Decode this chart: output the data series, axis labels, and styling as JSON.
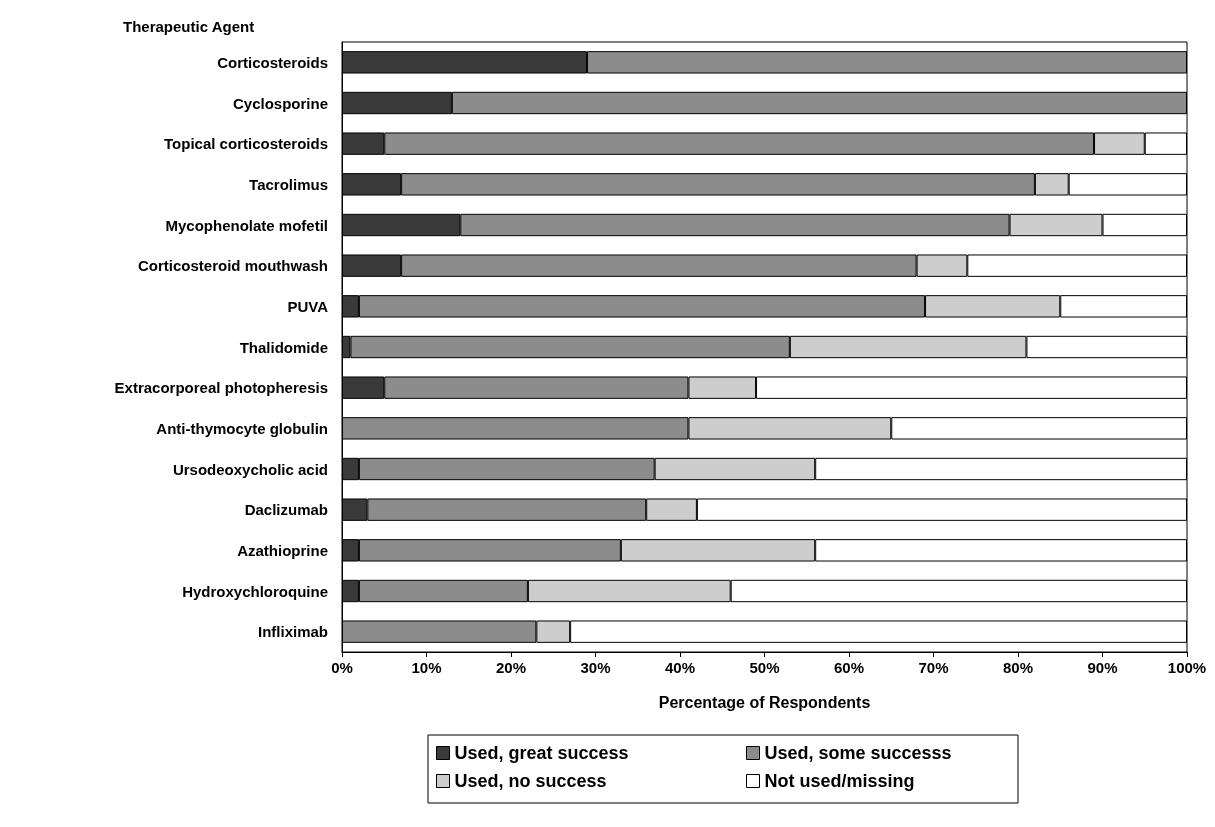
{
  "chart_data": {
    "type": "bar",
    "orientation": "horizontal",
    "stacked": true,
    "ylabel": "Therapeutic Agent",
    "xlabel": "Percentage of Respondents",
    "categories": [
      "Corticosteroids",
      "Cyclosporine",
      "Topical corticosteroids",
      "Tacrolimus",
      "Mycophenolate mofetil",
      "Corticosteroid mouthwash",
      "PUVA",
      "Thalidomide",
      "Extracorporeal photopheresis",
      "Anti-thymocyte globulin",
      "Ursodeoxycholic acid",
      "Daclizumab",
      "Azathioprine",
      "Hydroxychloroquine",
      "Infliximab"
    ],
    "series": [
      {
        "name": "Used, great success",
        "color": "#3a3a3a",
        "values": [
          29,
          13,
          5,
          7,
          14,
          7,
          2,
          1,
          5,
          0,
          2,
          3,
          2,
          2,
          0
        ]
      },
      {
        "name": "Used, some successs",
        "color": "#8c8c8c",
        "values": [
          71,
          87,
          84,
          75,
          65,
          61,
          67,
          52,
          36,
          41,
          35,
          33,
          31,
          20,
          23
        ]
      },
      {
        "name": "Used, no success",
        "color": "#cdcdcd",
        "values": [
          0,
          0,
          6,
          4,
          11,
          6,
          16,
          28,
          8,
          24,
          19,
          6,
          23,
          24,
          4
        ]
      },
      {
        "name": "Not used/missing",
        "color": "#ffffff",
        "values": [
          0,
          0,
          5,
          14,
          10,
          26,
          15,
          19,
          51,
          35,
          44,
          58,
          44,
          54,
          73
        ]
      }
    ],
    "xlim": [
      0,
      100
    ],
    "xticks": [
      {
        "value": 0,
        "label": "0%"
      },
      {
        "value": 10,
        "label": "10%"
      },
      {
        "value": 20,
        "label": "20%"
      },
      {
        "value": 30,
        "label": "30%"
      },
      {
        "value": 40,
        "label": "40%"
      },
      {
        "value": 50,
        "label": "50%"
      },
      {
        "value": 60,
        "label": "60%"
      },
      {
        "value": 70,
        "label": "70%"
      },
      {
        "value": 80,
        "label": "80%"
      },
      {
        "value": 90,
        "label": "90%"
      },
      {
        "value": 100,
        "label": "100%"
      }
    ],
    "grid": false,
    "legend": "bottom"
  }
}
